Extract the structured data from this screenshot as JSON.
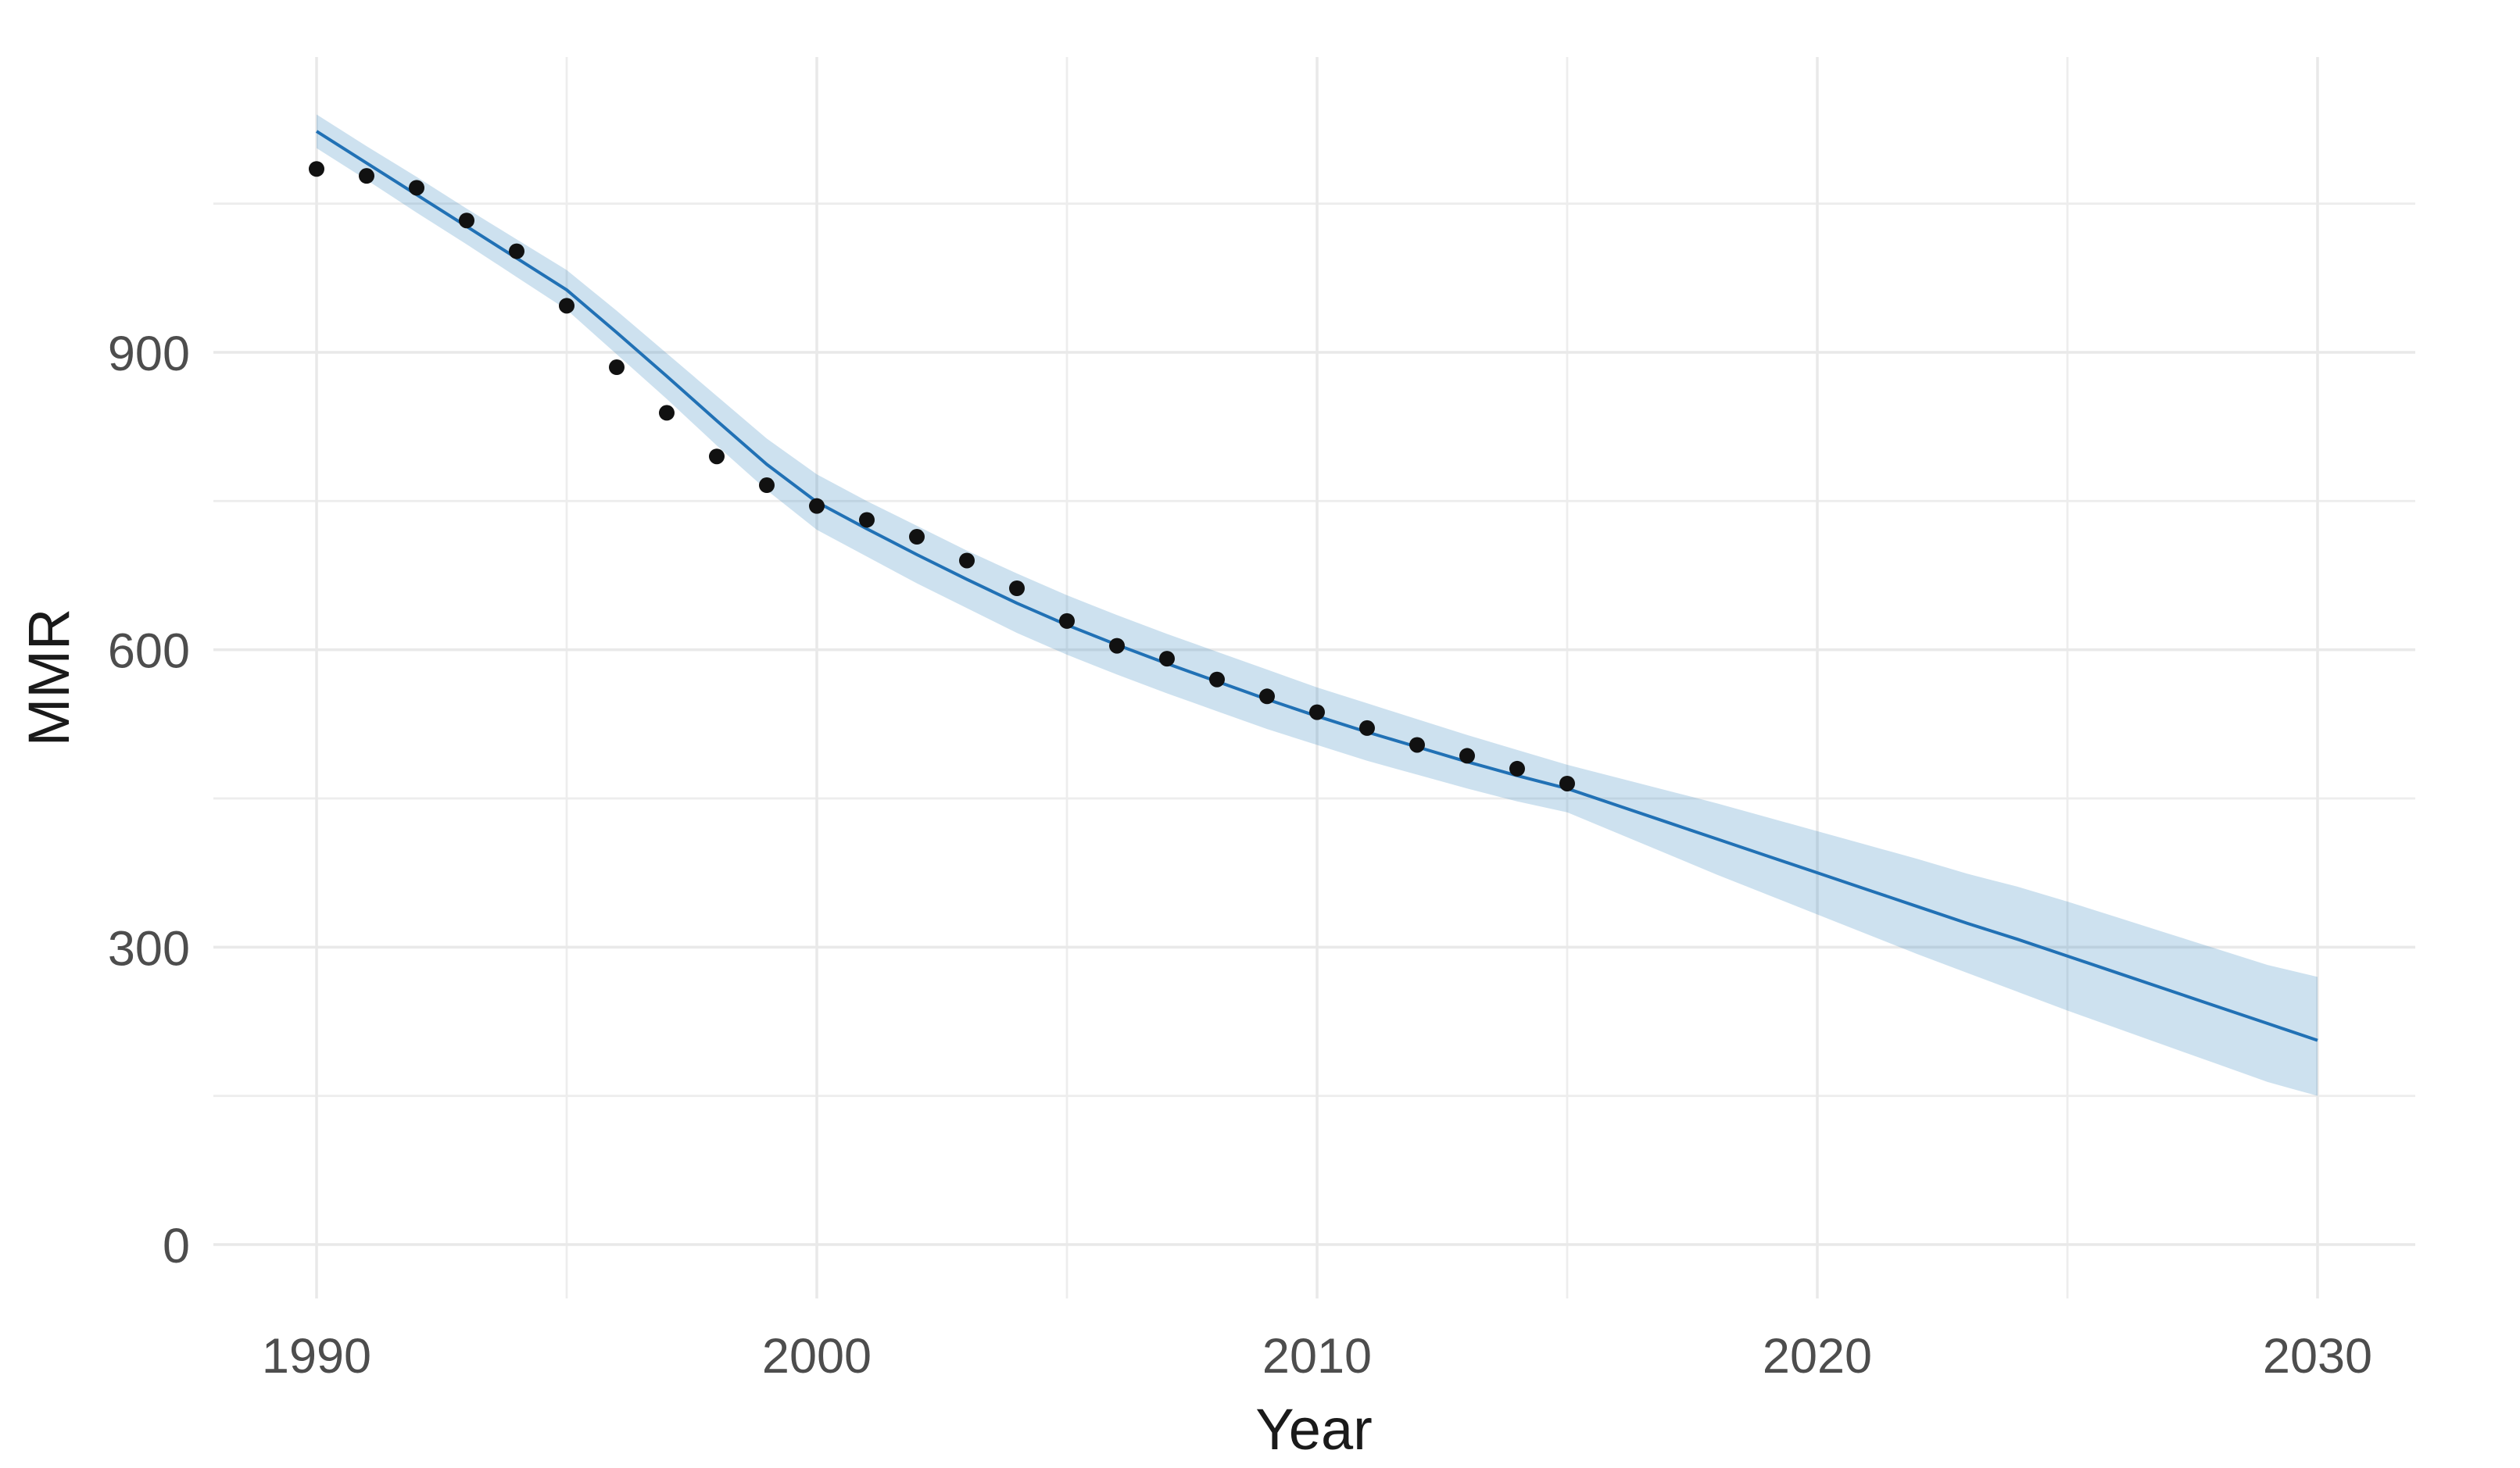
{
  "chart_data": {
    "type": "scatter",
    "subtype": "scatter-with-fitted-line-and-confidence-ribbon",
    "title": "",
    "xlabel": "Year",
    "ylabel": "MMR",
    "x_tick_labels": [
      "1990",
      "2000",
      "2010",
      "2020",
      "2030"
    ],
    "x_major_breaks": [
      1990,
      2000,
      2010,
      2020,
      2030
    ],
    "x_minor_breaks": [
      1995,
      2005,
      2015,
      2025
    ],
    "y_tick_labels": [
      "0",
      "300",
      "600",
      "900"
    ],
    "y_major_breaks": [
      0,
      300,
      600,
      900
    ],
    "y_minor_breaks": [
      150,
      450,
      750,
      1050
    ],
    "xlim": [
      1988,
      2032
    ],
    "ylim": [
      -55,
      1198
    ],
    "grid": "on",
    "legend": "none",
    "observed_points": {
      "name": "observed MMR",
      "years": [
        1990,
        1991,
        1992,
        1993,
        1994,
        1995,
        1996,
        1997,
        1998,
        1999,
        2000,
        2001,
        2002,
        2003,
        2004,
        2005,
        2006,
        2007,
        2008,
        2009,
        2010,
        2011,
        2012,
        2013,
        2014,
        2015
      ],
      "values": [
        1085,
        1078,
        1066,
        1033,
        1002,
        947,
        885,
        839,
        795,
        766,
        745,
        731,
        714,
        690,
        662,
        629,
        604,
        591,
        570,
        553,
        537,
        521,
        504,
        493,
        480,
        465
      ]
    },
    "fitted_line": {
      "name": "fitted / projected MMR",
      "years": [
        1990,
        1991,
        1992,
        1993,
        1994,
        1995,
        1996,
        1997,
        1998,
        1999,
        2000,
        2001,
        2002,
        2003,
        2004,
        2005,
        2006,
        2007,
        2008,
        2009,
        2010,
        2011,
        2012,
        2013,
        2014,
        2015,
        2016,
        2017,
        2018,
        2019,
        2020,
        2021,
        2022,
        2023,
        2024,
        2025,
        2026,
        2027,
        2028,
        2029,
        2030
      ],
      "values": [
        1123,
        1091,
        1059,
        1027,
        995,
        963,
        920,
        876,
        831,
        787,
        749,
        722,
        696,
        671,
        647,
        625,
        605,
        586,
        568,
        550,
        533,
        517,
        502,
        487,
        473,
        460,
        443,
        426,
        409,
        392,
        375,
        358,
        341,
        324,
        308,
        291,
        274,
        257,
        240,
        223,
        206
      ]
    },
    "confidence_ribbon": {
      "name": "confidence interval",
      "years": [
        1990,
        1991,
        1992,
        1993,
        1994,
        1995,
        1996,
        1997,
        1998,
        1999,
        2000,
        2001,
        2002,
        2003,
        2004,
        2005,
        2006,
        2007,
        2008,
        2009,
        2010,
        2011,
        2012,
        2013,
        2014,
        2015,
        2016,
        2017,
        2018,
        2019,
        2020,
        2021,
        2022,
        2023,
        2024,
        2025,
        2026,
        2027,
        2028,
        2029,
        2030
      ],
      "lower": [
        1106,
        1074,
        1041,
        1009,
        976,
        943,
        898,
        853,
        806,
        761,
        721,
        694,
        667,
        642,
        617,
        595,
        575,
        556,
        538,
        520,
        504,
        488,
        474,
        460,
        447,
        436,
        415,
        394,
        373,
        353,
        333,
        313,
        293,
        274,
        255,
        236,
        218,
        200,
        182,
        164,
        150
      ],
      "upper": [
        1140,
        1108,
        1077,
        1045,
        1014,
        983,
        942,
        899,
        856,
        813,
        777,
        750,
        725,
        700,
        677,
        655,
        635,
        616,
        598,
        580,
        562,
        546,
        530,
        514,
        499,
        484,
        471,
        458,
        445,
        431,
        417,
        403,
        389,
        374,
        361,
        346,
        330,
        314,
        298,
        282,
        270
      ]
    },
    "colors": {
      "point": "#111111",
      "line": "#2171b5",
      "ribbon": "rgba(49,130,189,0.245)",
      "grid_major": "#e9e9e9",
      "grid_minor": "#ededed",
      "tick_text": "#4d4d4d",
      "axis_title_text": "#1a1a1a",
      "background": "#ffffff"
    }
  },
  "axes": {
    "x_title": "Year",
    "y_title": "MMR"
  }
}
